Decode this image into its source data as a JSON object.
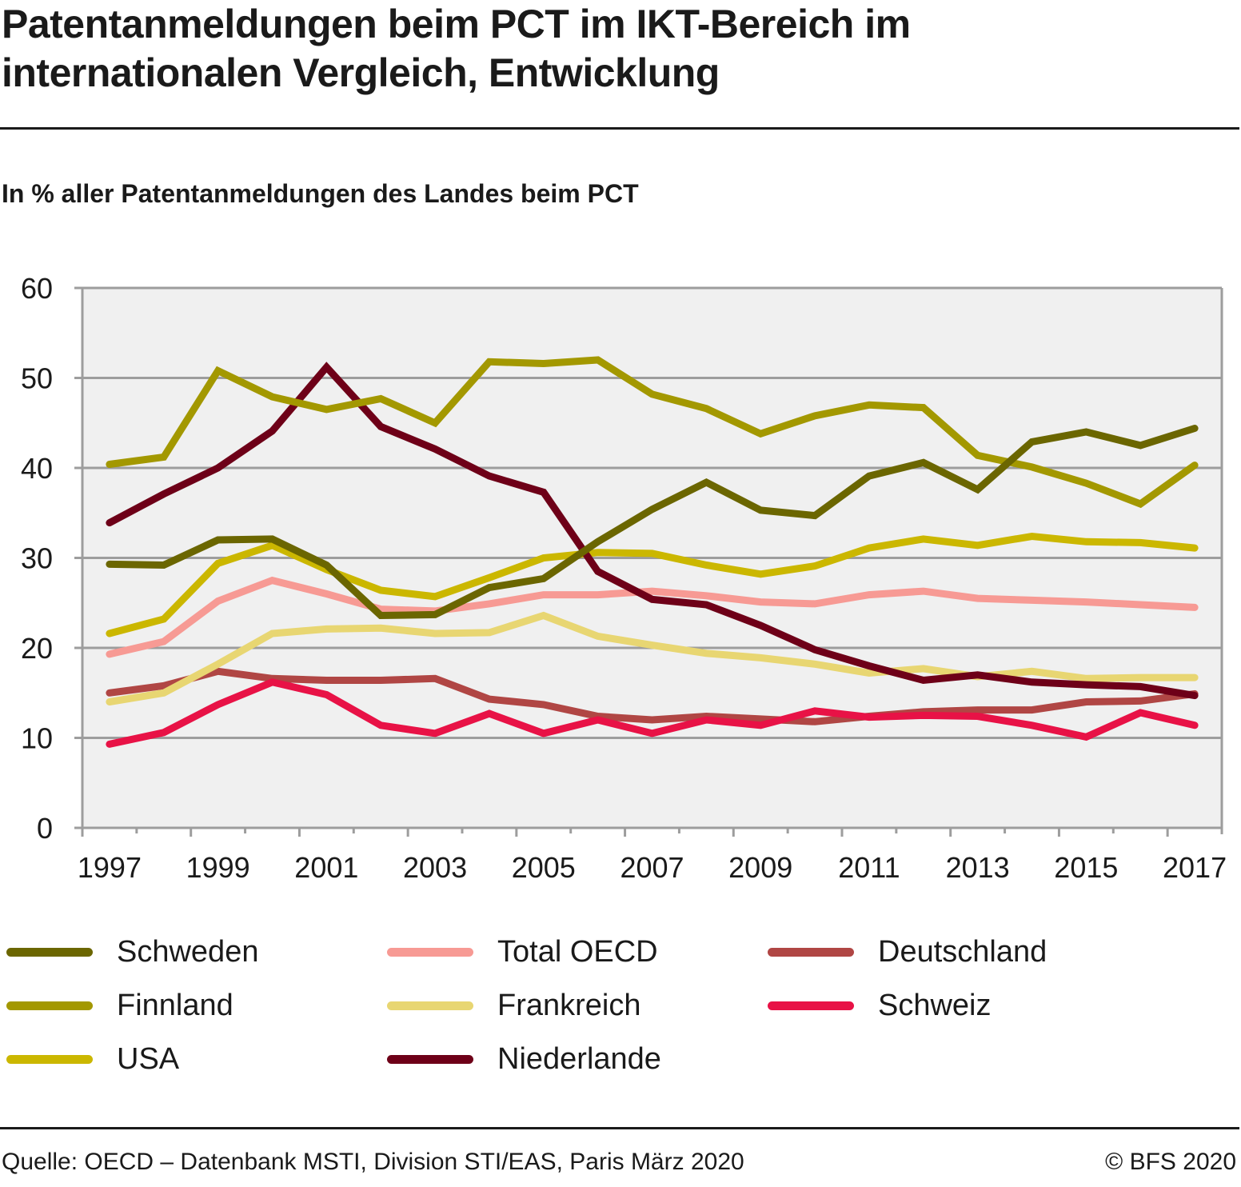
{
  "header": {
    "title_line1": "Patentanmeldungen beim PCT im IKT-Bereich im",
    "title_line2": "internationalen Vergleich, Entwicklung",
    "subtitle": "In % aller Patentanmeldungen des Landes beim PCT"
  },
  "footer": {
    "source": "Quelle: OECD – Datenbank MSTI, Division STI/EAS, Paris März 2020",
    "copyright": "© BFS 2020"
  },
  "chart_data": {
    "type": "line",
    "title": "Patentanmeldungen beim PCT im IKT-Bereich im internationalen Vergleich, Entwicklung",
    "subtitle": "In % aller Patentanmeldungen des Landes beim PCT",
    "xlabel": "",
    "ylabel": "",
    "ylim": [
      0,
      60
    ],
    "yticks": [
      0,
      10,
      20,
      30,
      40,
      50,
      60
    ],
    "x": [
      1997,
      1998,
      1999,
      2000,
      2001,
      2002,
      2003,
      2004,
      2005,
      2006,
      2007,
      2008,
      2009,
      2010,
      2011,
      2012,
      2013,
      2014,
      2015,
      2016,
      2017
    ],
    "xtick_labels": [
      "1997",
      "1999",
      "2001",
      "2003",
      "2005",
      "2007",
      "2009",
      "2011",
      "2013",
      "2015",
      "2017"
    ],
    "grid": true,
    "legend_position": "bottom",
    "plot_background": "#f0f0f0",
    "series": [
      {
        "name": "Schweden",
        "color": "#6b6600",
        "values": [
          29.3,
          29.2,
          32.0,
          32.1,
          29.2,
          23.6,
          23.7,
          26.7,
          27.7,
          31.8,
          35.4,
          38.4,
          35.3,
          34.7,
          39.1,
          40.6,
          37.6,
          42.9,
          44.0,
          42.5,
          44.4
        ]
      },
      {
        "name": "Finnland",
        "color": "#a39800",
        "values": [
          40.4,
          41.2,
          50.8,
          47.9,
          46.5,
          47.7,
          45.0,
          51.8,
          51.6,
          52.0,
          48.2,
          46.6,
          43.8,
          45.8,
          47.0,
          46.7,
          41.4,
          40.1,
          38.3,
          36.0,
          40.3
        ]
      },
      {
        "name": "USA",
        "color": "#cbb700",
        "values": [
          21.6,
          23.2,
          29.4,
          31.4,
          28.7,
          26.4,
          25.7,
          27.8,
          30.0,
          30.6,
          30.5,
          29.2,
          28.2,
          29.1,
          31.1,
          32.1,
          31.4,
          32.4,
          31.8,
          31.7,
          31.1
        ]
      },
      {
        "name": "Total OECD",
        "color": "#f79a94",
        "values": [
          19.3,
          20.7,
          25.2,
          27.5,
          26.0,
          24.3,
          24.1,
          24.9,
          25.9,
          25.9,
          26.3,
          25.8,
          25.1,
          24.9,
          25.9,
          26.3,
          25.5,
          25.3,
          25.1,
          24.8,
          24.5
        ]
      },
      {
        "name": "Frankreich",
        "color": "#e8d672",
        "values": [
          14.0,
          15.0,
          18.2,
          21.6,
          22.1,
          22.2,
          21.6,
          21.7,
          23.6,
          21.3,
          20.3,
          19.4,
          18.9,
          18.2,
          17.2,
          17.7,
          16.8,
          17.4,
          16.6,
          16.7,
          16.7
        ]
      },
      {
        "name": "Niederlande",
        "color": "#6e0018",
        "values": [
          33.9,
          37.1,
          40.0,
          44.1,
          51.2,
          44.6,
          42.1,
          39.1,
          37.3,
          28.5,
          25.4,
          24.8,
          22.5,
          19.8,
          18.0,
          16.4,
          17.0,
          16.2,
          15.9,
          15.7,
          14.7
        ]
      },
      {
        "name": "Deutschland",
        "color": "#b04644",
        "values": [
          15.0,
          15.8,
          17.4,
          16.6,
          16.4,
          16.4,
          16.6,
          14.3,
          13.7,
          12.4,
          12.0,
          12.4,
          12.1,
          11.8,
          12.4,
          12.9,
          13.1,
          13.1,
          14.0,
          14.1,
          14.9
        ]
      },
      {
        "name": "Schweiz",
        "color": "#e81246",
        "values": [
          9.3,
          10.6,
          13.7,
          16.2,
          14.8,
          11.4,
          10.5,
          12.7,
          10.5,
          12.0,
          10.5,
          12.0,
          11.4,
          13.0,
          12.3,
          12.5,
          12.4,
          11.4,
          10.1,
          12.8,
          11.4
        ]
      }
    ],
    "draw_order": [
      "Deutschland",
      "Schweiz",
      "Frankreich",
      "Total OECD",
      "USA",
      "Niederlande",
      "Finnland",
      "Schweden"
    ],
    "legend": [
      {
        "name": "Schweden",
        "color": "#6b6600",
        "col": 0,
        "row": 0
      },
      {
        "name": "Finnland",
        "color": "#a39800",
        "col": 0,
        "row": 1
      },
      {
        "name": "USA",
        "color": "#cbb700",
        "col": 0,
        "row": 2
      },
      {
        "name": "Total OECD",
        "color": "#f79a94",
        "col": 1,
        "row": 0
      },
      {
        "name": "Frankreich",
        "color": "#e8d672",
        "col": 1,
        "row": 1
      },
      {
        "name": "Niederlande",
        "color": "#6e0018",
        "col": 1,
        "row": 2
      },
      {
        "name": "Deutschland",
        "color": "#b04644",
        "col": 2,
        "row": 0
      },
      {
        "name": "Schweiz",
        "color": "#e81246",
        "col": 2,
        "row": 1
      }
    ]
  }
}
